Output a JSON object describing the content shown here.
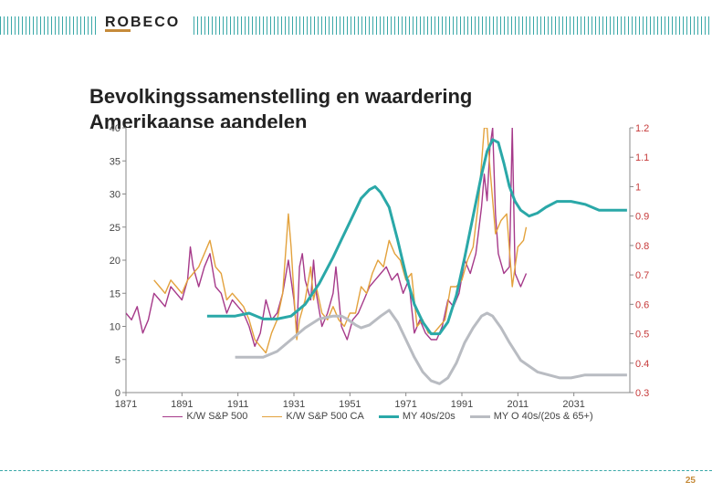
{
  "logo": {
    "text": "ROBECO",
    "accent_prefix_len": 2,
    "text_color": "#222",
    "underline_color": "#c68b3a"
  },
  "slide": {
    "title_line1": "Bevolkingssamenstelling en waardering",
    "title_line2": "Amerikaanse aandelen",
    "page_number": "25"
  },
  "chart": {
    "type": "line",
    "background_color": "#ffffff",
    "x": {
      "min": 1871,
      "max": 2051,
      "ticks": [
        1871,
        1891,
        1911,
        1931,
        1951,
        1971,
        1991,
        2011,
        2031
      ],
      "tick_fontsize": 11,
      "tick_color": "#444"
    },
    "yL": {
      "min": 0,
      "max": 40,
      "ticks": [
        0,
        5,
        10,
        15,
        20,
        25,
        30,
        35,
        40
      ],
      "tick_fontsize": 11,
      "tick_color": "#444"
    },
    "yR": {
      "min": 0.3,
      "max": 1.2,
      "ticks": [
        0.3,
        0.4,
        0.5,
        0.6,
        0.7,
        0.8,
        0.9,
        1,
        1.1,
        1.2
      ],
      "tick_fontsize": 11,
      "tick_color": "#c63a3a"
    },
    "legend": [
      {
        "label": "K/W S&P 500",
        "color": "#a63a8a",
        "width": 1.4
      },
      {
        "label": "K/W S&P 500 CA",
        "color": "#e3a23d",
        "width": 1.4
      },
      {
        "label": "MY 40s/20s",
        "color": "#2aa8a8",
        "width": 3
      },
      {
        "label": "MY O 40s/(20s & 65+)",
        "color": "#b9bcc2",
        "width": 3
      }
    ],
    "series": {
      "kw_sp500": {
        "axis": "L",
        "color": "#a63a8a",
        "width": 1.4,
        "dash": "",
        "pts": [
          [
            1871,
            12
          ],
          [
            1873,
            11
          ],
          [
            1875,
            13
          ],
          [
            1877,
            9
          ],
          [
            1879,
            11
          ],
          [
            1881,
            15
          ],
          [
            1883,
            14
          ],
          [
            1885,
            13
          ],
          [
            1887,
            16
          ],
          [
            1889,
            15
          ],
          [
            1891,
            14
          ],
          [
            1893,
            17
          ],
          [
            1894,
            22
          ],
          [
            1895,
            19
          ],
          [
            1897,
            16
          ],
          [
            1899,
            19
          ],
          [
            1901,
            21
          ],
          [
            1903,
            16
          ],
          [
            1905,
            15
          ],
          [
            1907,
            12
          ],
          [
            1909,
            14
          ],
          [
            1911,
            13
          ],
          [
            1913,
            12
          ],
          [
            1915,
            10
          ],
          [
            1917,
            7
          ],
          [
            1919,
            9
          ],
          [
            1921,
            14
          ],
          [
            1923,
            11
          ],
          [
            1925,
            12
          ],
          [
            1927,
            15
          ],
          [
            1929,
            20
          ],
          [
            1931,
            14
          ],
          [
            1932,
            9
          ],
          [
            1933,
            19
          ],
          [
            1934,
            21
          ],
          [
            1935,
            17
          ],
          [
            1937,
            14
          ],
          [
            1938,
            20
          ],
          [
            1939,
            15
          ],
          [
            1941,
            10
          ],
          [
            1943,
            12
          ],
          [
            1945,
            15
          ],
          [
            1946,
            19
          ],
          [
            1948,
            10
          ],
          [
            1950,
            8
          ],
          [
            1952,
            11
          ],
          [
            1954,
            12
          ],
          [
            1956,
            14
          ],
          [
            1958,
            16
          ],
          [
            1960,
            17
          ],
          [
            1962,
            18
          ],
          [
            1964,
            19
          ],
          [
            1966,
            17
          ],
          [
            1968,
            18
          ],
          [
            1970,
            15
          ],
          [
            1972,
            17
          ],
          [
            1974,
            9
          ],
          [
            1976,
            11
          ],
          [
            1978,
            9
          ],
          [
            1980,
            8
          ],
          [
            1982,
            8
          ],
          [
            1984,
            10
          ],
          [
            1986,
            14
          ],
          [
            1988,
            13
          ],
          [
            1990,
            15
          ],
          [
            1992,
            20
          ],
          [
            1994,
            18
          ],
          [
            1996,
            21
          ],
          [
            1998,
            28
          ],
          [
            1999,
            33
          ],
          [
            2000,
            29
          ],
          [
            2001,
            37
          ],
          [
            2002,
            40
          ],
          [
            2003,
            27
          ],
          [
            2004,
            21
          ],
          [
            2006,
            18
          ],
          [
            2008,
            19
          ],
          [
            2009,
            40
          ],
          [
            2010,
            18
          ],
          [
            2012,
            16
          ],
          [
            2014,
            18
          ]
        ]
      },
      "kw_sp500_ca": {
        "axis": "L",
        "color": "#e3a23d",
        "width": 1.4,
        "dash": "",
        "pts": [
          [
            1881,
            17
          ],
          [
            1883,
            16
          ],
          [
            1885,
            15
          ],
          [
            1887,
            17
          ],
          [
            1889,
            16
          ],
          [
            1891,
            15
          ],
          [
            1893,
            17
          ],
          [
            1895,
            18
          ],
          [
            1897,
            19
          ],
          [
            1899,
            21
          ],
          [
            1901,
            23
          ],
          [
            1903,
            19
          ],
          [
            1905,
            18
          ],
          [
            1907,
            14
          ],
          [
            1909,
            15
          ],
          [
            1911,
            14
          ],
          [
            1913,
            13
          ],
          [
            1915,
            11
          ],
          [
            1917,
            8
          ],
          [
            1919,
            7
          ],
          [
            1921,
            6
          ],
          [
            1923,
            9
          ],
          [
            1925,
            11
          ],
          [
            1927,
            15
          ],
          [
            1929,
            27
          ],
          [
            1930,
            22
          ],
          [
            1931,
            15
          ],
          [
            1932,
            8
          ],
          [
            1933,
            11
          ],
          [
            1935,
            14
          ],
          [
            1937,
            19
          ],
          [
            1938,
            14
          ],
          [
            1939,
            16
          ],
          [
            1941,
            12
          ],
          [
            1943,
            11
          ],
          [
            1945,
            13
          ],
          [
            1947,
            11
          ],
          [
            1949,
            10
          ],
          [
            1951,
            12
          ],
          [
            1953,
            12
          ],
          [
            1955,
            16
          ],
          [
            1957,
            15
          ],
          [
            1959,
            18
          ],
          [
            1961,
            20
          ],
          [
            1963,
            19
          ],
          [
            1965,
            23
          ],
          [
            1967,
            21
          ],
          [
            1969,
            20
          ],
          [
            1971,
            17
          ],
          [
            1973,
            18
          ],
          [
            1975,
            10
          ],
          [
            1977,
            11
          ],
          [
            1979,
            9
          ],
          [
            1981,
            9
          ],
          [
            1983,
            10
          ],
          [
            1985,
            11
          ],
          [
            1987,
            16
          ],
          [
            1989,
            16
          ],
          [
            1991,
            17
          ],
          [
            1993,
            20
          ],
          [
            1995,
            22
          ],
          [
            1997,
            29
          ],
          [
            1999,
            40
          ],
          [
            2000,
            40
          ],
          [
            2001,
            34
          ],
          [
            2003,
            24
          ],
          [
            2005,
            26
          ],
          [
            2007,
            27
          ],
          [
            2009,
            16
          ],
          [
            2011,
            22
          ],
          [
            2013,
            23
          ],
          [
            2014,
            25
          ]
        ]
      },
      "my40s20s": {
        "axis": "R",
        "color": "#2aa8a8",
        "width": 3,
        "dash": "",
        "pts": [
          [
            1900,
            0.56
          ],
          [
            1905,
            0.56
          ],
          [
            1910,
            0.56
          ],
          [
            1915,
            0.57
          ],
          [
            1920,
            0.55
          ],
          [
            1925,
            0.55
          ],
          [
            1930,
            0.56
          ],
          [
            1935,
            0.6
          ],
          [
            1940,
            0.67
          ],
          [
            1945,
            0.76
          ],
          [
            1948,
            0.82
          ],
          [
            1952,
            0.9
          ],
          [
            1955,
            0.96
          ],
          [
            1958,
            0.99
          ],
          [
            1960,
            1.0
          ],
          [
            1962,
            0.98
          ],
          [
            1965,
            0.93
          ],
          [
            1968,
            0.82
          ],
          [
            1971,
            0.7
          ],
          [
            1974,
            0.6
          ],
          [
            1977,
            0.54
          ],
          [
            1980,
            0.5
          ],
          [
            1983,
            0.5
          ],
          [
            1986,
            0.54
          ],
          [
            1989,
            0.63
          ],
          [
            1992,
            0.76
          ],
          [
            1995,
            0.9
          ],
          [
            1998,
            1.04
          ],
          [
            2000,
            1.12
          ],
          [
            2002,
            1.16
          ],
          [
            2004,
            1.15
          ],
          [
            2006,
            1.08
          ],
          [
            2008,
            1.0
          ],
          [
            2010,
            0.95
          ],
          [
            2012,
            0.92
          ],
          [
            2015,
            0.9
          ],
          [
            2018,
            0.91
          ],
          [
            2021,
            0.93
          ],
          [
            2025,
            0.95
          ],
          [
            2030,
            0.95
          ],
          [
            2035,
            0.94
          ],
          [
            2040,
            0.92
          ],
          [
            2045,
            0.92
          ],
          [
            2050,
            0.92
          ]
        ]
      },
      "myo40s": {
        "axis": "R",
        "color": "#b9bcc2",
        "width": 3,
        "dash": "",
        "pts": [
          [
            1910,
            0.42
          ],
          [
            1915,
            0.42
          ],
          [
            1920,
            0.42
          ],
          [
            1925,
            0.44
          ],
          [
            1930,
            0.48
          ],
          [
            1935,
            0.52
          ],
          [
            1940,
            0.55
          ],
          [
            1945,
            0.56
          ],
          [
            1948,
            0.56
          ],
          [
            1950,
            0.55
          ],
          [
            1953,
            0.53
          ],
          [
            1955,
            0.52
          ],
          [
            1958,
            0.53
          ],
          [
            1962,
            0.56
          ],
          [
            1965,
            0.58
          ],
          [
            1968,
            0.54
          ],
          [
            1971,
            0.48
          ],
          [
            1974,
            0.42
          ],
          [
            1977,
            0.37
          ],
          [
            1980,
            0.34
          ],
          [
            1983,
            0.33
          ],
          [
            1986,
            0.35
          ],
          [
            1989,
            0.4
          ],
          [
            1992,
            0.47
          ],
          [
            1995,
            0.52
          ],
          [
            1998,
            0.56
          ],
          [
            2000,
            0.57
          ],
          [
            2002,
            0.56
          ],
          [
            2005,
            0.52
          ],
          [
            2008,
            0.47
          ],
          [
            2010,
            0.44
          ],
          [
            2012,
            0.41
          ],
          [
            2015,
            0.39
          ],
          [
            2018,
            0.37
          ],
          [
            2022,
            0.36
          ],
          [
            2026,
            0.35
          ],
          [
            2030,
            0.35
          ],
          [
            2035,
            0.36
          ],
          [
            2040,
            0.36
          ],
          [
            2045,
            0.36
          ],
          [
            2050,
            0.36
          ]
        ]
      }
    }
  },
  "decor": {
    "stripe_color": "#3aa8a8"
  }
}
